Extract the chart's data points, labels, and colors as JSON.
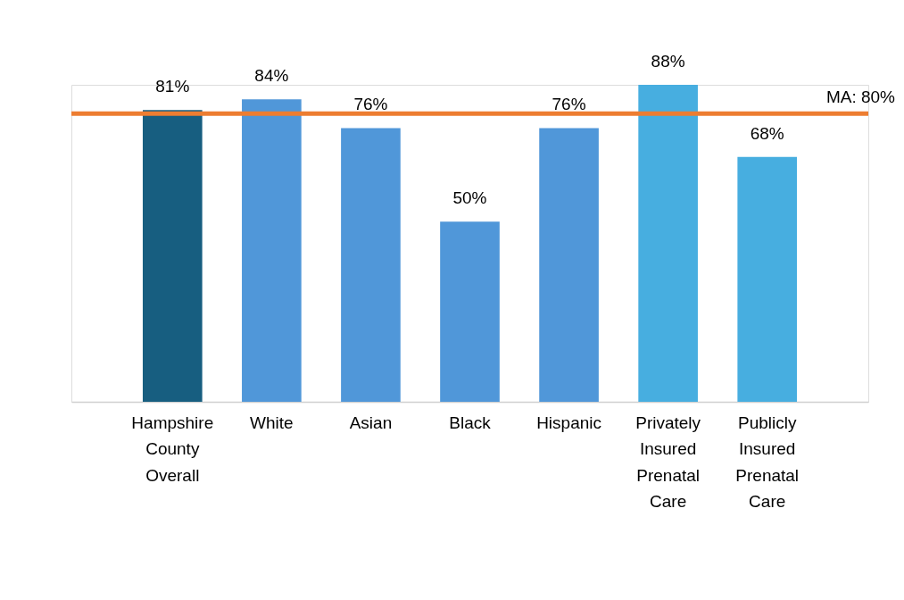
{
  "chart_data": {
    "type": "bar",
    "categories": [
      "Hampshire County Overall",
      "White",
      "Asian",
      "Black",
      "Hispanic",
      "Privately Insured Prenatal Care",
      "Publicly Insured Prenatal Care"
    ],
    "values": [
      81,
      84,
      76,
      50,
      76,
      88,
      68
    ],
    "colors": [
      "#175e80",
      "#5097d9",
      "#5097d9",
      "#5097d9",
      "#5097d9",
      "#47aee0",
      "#47aee0"
    ],
    "value_labels": [
      "81%",
      "84%",
      "76%",
      "50%",
      "76%",
      "88%",
      "68%"
    ],
    "ref_lines": [
      {
        "axis": "y",
        "value": 80,
        "label": "MA: 80%",
        "color": "#ed7d31",
        "line_style": "solid"
      }
    ],
    "grid": false
  }
}
